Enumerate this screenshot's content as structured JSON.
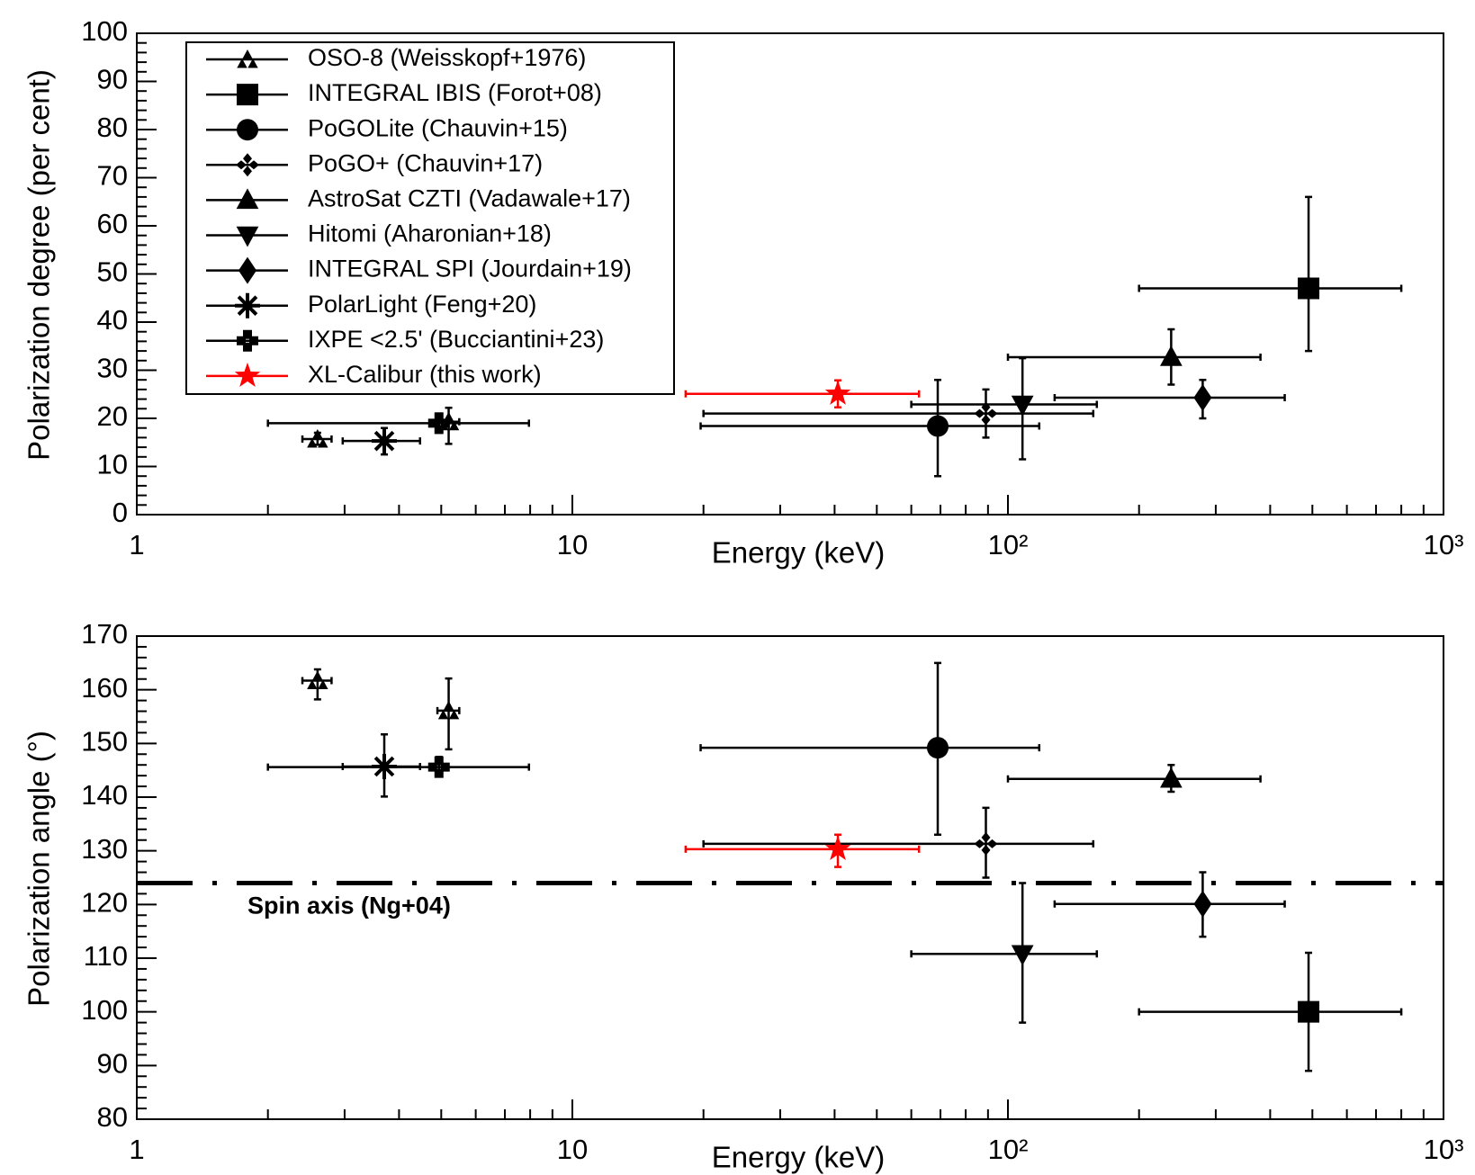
{
  "chart_data": [
    {
      "type": "scatter",
      "log_x": true,
      "legend": "top-left",
      "x_label": "Energy (keV)",
      "y_label": "Polarization degree  (per cent)",
      "xlim": [
        1,
        1000
      ],
      "xticks": [
        1,
        10,
        {
          "value": 100,
          "label": "10²"
        },
        {
          "value": 1000,
          "label": "10³"
        }
      ],
      "ylim": [
        0,
        100
      ],
      "yticks": [
        0,
        10,
        20,
        30,
        40,
        50,
        60,
        70,
        80,
        90,
        100
      ],
      "series": [
        {
          "name": "OSO-8 (Weisskopf+1976)",
          "color": "#000000",
          "marker": "tri-cluster",
          "x": [
            2.6,
            5.2
          ],
          "x_min": [
            2.4,
            4.9
          ],
          "x_max": [
            2.8,
            5.5
          ],
          "values": [
            15.7,
            19.3
          ],
          "y_min": [
            14.5,
            14.7
          ],
          "y_max": [
            17,
            22.2
          ]
        },
        {
          "name": "INTEGRAL IBIS (Forot+08)",
          "color": "#000000",
          "marker": "square",
          "x": [
            490
          ],
          "x_min": [
            200
          ],
          "x_max": [
            800
          ],
          "values": [
            47
          ],
          "y_min": [
            34
          ],
          "y_max": [
            66
          ]
        },
        {
          "name": "PoGOLite (Chauvin+15)",
          "color": "#000000",
          "marker": "circle",
          "x": [
            69
          ],
          "x_min": [
            19.7
          ],
          "x_max": [
            118
          ],
          "values": [
            18.4
          ],
          "y_min": [
            8
          ],
          "y_max": [
            28
          ]
        },
        {
          "name": "PoGO+ (Chauvin+17)",
          "color": "#000000",
          "marker": "diamond-cluster",
          "x": [
            89
          ],
          "x_min": [
            20
          ],
          "x_max": [
            157
          ],
          "values": [
            21
          ],
          "y_min": [
            16
          ],
          "y_max": [
            26
          ]
        },
        {
          "name": "AstroSat CZTI (Vadawale+17)",
          "color": "#000000",
          "marker": "triangle-up",
          "x": [
            237
          ],
          "x_min": [
            100
          ],
          "x_max": [
            380
          ],
          "values": [
            32.7
          ],
          "y_min": [
            27
          ],
          "y_max": [
            38.5
          ]
        },
        {
          "name": "Hitomi (Aharonian+18)",
          "color": "#000000",
          "marker": "triangle-down",
          "x": [
            108
          ],
          "x_min": [
            60
          ],
          "x_max": [
            160
          ],
          "values": [
            22.9
          ],
          "y_min": [
            11.5
          ],
          "y_max": [
            32.5
          ]
        },
        {
          "name": "INTEGRAL SPI (Jourdain+19)",
          "color": "#000000",
          "marker": "diamond",
          "x": [
            280
          ],
          "x_min": [
            128
          ],
          "x_max": [
            432
          ],
          "values": [
            24.3
          ],
          "y_min": [
            20
          ],
          "y_max": [
            28
          ]
        },
        {
          "name": "PolarLight (Feng+20)",
          "color": "#000000",
          "marker": "asterisk",
          "x": [
            3.7
          ],
          "x_min": [
            2.97
          ],
          "x_max": [
            4.47
          ],
          "values": [
            15.3
          ],
          "y_min": [
            12.5
          ],
          "y_max": [
            18
          ]
        },
        {
          "name": "IXPE <2.5' (Bucciantini+23)",
          "color": "#000000",
          "marker": "square-cluster",
          "x": [
            4.94
          ],
          "x_min": [
            2.0
          ],
          "x_max": [
            7.95
          ],
          "values": [
            19
          ],
          "y_min": [
            17
          ],
          "y_max": [
            21
          ]
        },
        {
          "name": "XL-Calibur (this work)",
          "color": "#ff0000",
          "marker": "star",
          "x": [
            40.7
          ],
          "x_min": [
            18.2
          ],
          "x_max": [
            62.5
          ],
          "values": [
            25.1
          ],
          "y_min": [
            22.3
          ],
          "y_max": [
            27.9
          ]
        }
      ]
    },
    {
      "type": "scatter",
      "log_x": true,
      "x_label": "Energy (keV)",
      "y_label": "Polarization angle (°)",
      "xlim": [
        1,
        1000
      ],
      "xticks": [
        1,
        10,
        {
          "value": 100,
          "label": "10²"
        },
        {
          "value": 1000,
          "label": "10³"
        }
      ],
      "ylim": [
        80,
        170
      ],
      "yticks": [
        80,
        90,
        100,
        110,
        120,
        130,
        140,
        150,
        160,
        170
      ],
      "reference_line": {
        "value": 124,
        "label": "Spin axis (Ng+04)"
      },
      "series": [
        {
          "color": "#000000",
          "marker": "tri-cluster",
          "x": [
            2.6,
            5.2
          ],
          "x_min": [
            2.4,
            4.9
          ],
          "x_max": [
            2.8,
            5.5
          ],
          "values": [
            161.7,
            156.1
          ],
          "y_min": [
            158.2,
            148.9
          ],
          "y_max": [
            163.8,
            162.1
          ]
        },
        {
          "color": "#000000",
          "marker": "square",
          "x": [
            490
          ],
          "x_min": [
            200
          ],
          "x_max": [
            800
          ],
          "values": [
            100
          ],
          "y_min": [
            89
          ],
          "y_max": [
            111
          ]
        },
        {
          "color": "#000000",
          "marker": "circle",
          "x": [
            69
          ],
          "x_min": [
            19.7
          ],
          "x_max": [
            118
          ],
          "values": [
            149.2
          ],
          "y_min": [
            133
          ],
          "y_max": [
            165
          ]
        },
        {
          "color": "#000000",
          "marker": "diamond-cluster",
          "x": [
            89
          ],
          "x_min": [
            20
          ],
          "x_max": [
            157
          ],
          "values": [
            131.3
          ],
          "y_min": [
            125
          ],
          "y_max": [
            138
          ]
        },
        {
          "color": "#000000",
          "marker": "triangle-up",
          "x": [
            237
          ],
          "x_min": [
            100
          ],
          "x_max": [
            380
          ],
          "values": [
            143.4
          ],
          "y_min": [
            141
          ],
          "y_max": [
            146
          ]
        },
        {
          "color": "#000000",
          "marker": "triangle-down",
          "x": [
            108
          ],
          "x_min": [
            60
          ],
          "x_max": [
            160
          ],
          "values": [
            110.8
          ],
          "y_min": [
            98
          ],
          "y_max": [
            124
          ]
        },
        {
          "color": "#000000",
          "marker": "diamond",
          "x": [
            280
          ],
          "x_min": [
            128
          ],
          "x_max": [
            432
          ],
          "values": [
            120.1
          ],
          "y_min": [
            114
          ],
          "y_max": [
            126
          ]
        },
        {
          "color": "#000000",
          "marker": "asterisk",
          "x": [
            3.7
          ],
          "x_min": [
            2.97
          ],
          "x_max": [
            4.47
          ],
          "values": [
            145.7
          ],
          "y_min": [
            140.1
          ],
          "y_max": [
            151.7
          ]
        },
        {
          "color": "#000000",
          "marker": "square-cluster",
          "x": [
            4.94
          ],
          "x_min": [
            2.0
          ],
          "x_max": [
            7.95
          ],
          "values": [
            145.6
          ],
          "y_min": [
            144
          ],
          "y_max": [
            147.5
          ]
        },
        {
          "color": "#ff0000",
          "marker": "star",
          "x": [
            40.7
          ],
          "x_min": [
            18.2
          ],
          "x_max": [
            62.5
          ],
          "values": [
            130.3
          ],
          "y_min": [
            127
          ],
          "y_max": [
            133
          ]
        }
      ]
    }
  ]
}
